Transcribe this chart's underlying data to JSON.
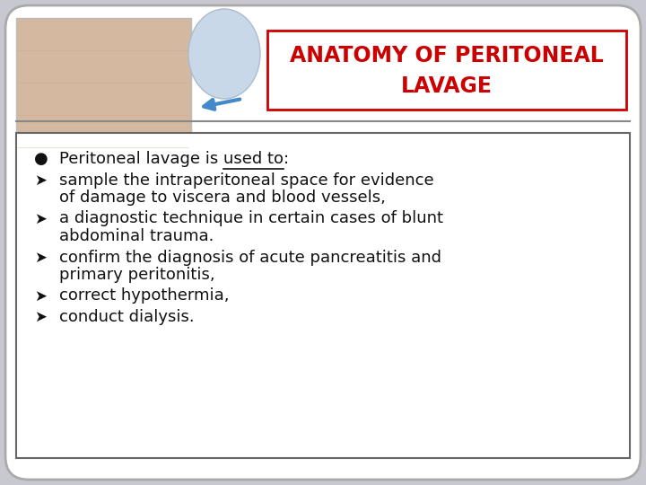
{
  "title_line1": "ANATOMY OF PERITONEAL",
  "title_line2": "LAVAGE",
  "title_color": "#cc0000",
  "title_bg": "#ffffff",
  "title_border": "#cc0000",
  "bg_color": "#c8c8d0",
  "slide_bg": "#ffffff",
  "bullet_items": [
    {
      "marker": "l",
      "lines": [
        "Peritoneal lavage is used to:"
      ],
      "underline_word": "used to"
    },
    {
      "marker": "arrow",
      "lines": [
        "sample the intraperitoneal space for evidence",
        "of damage to viscera and blood vessels,"
      ]
    },
    {
      "marker": "arrow",
      "lines": [
        "a diagnostic technique in certain cases of blunt",
        "abdominal trauma."
      ]
    },
    {
      "marker": "arrow",
      "lines": [
        "confirm the diagnosis of acute pancreatitis and",
        "primary peritonitis,"
      ]
    },
    {
      "marker": "arrow",
      "lines": [
        "correct hypothermia,"
      ]
    },
    {
      "marker": "arrow",
      "lines": [
        "conduct dialysis."
      ]
    }
  ],
  "content_box_border": "#666666",
  "text_color": "#111111",
  "font_size": 13.0,
  "header_font_size": 17,
  "separator_color": "#888888",
  "img_placeholder_color": "#e8d8c8"
}
